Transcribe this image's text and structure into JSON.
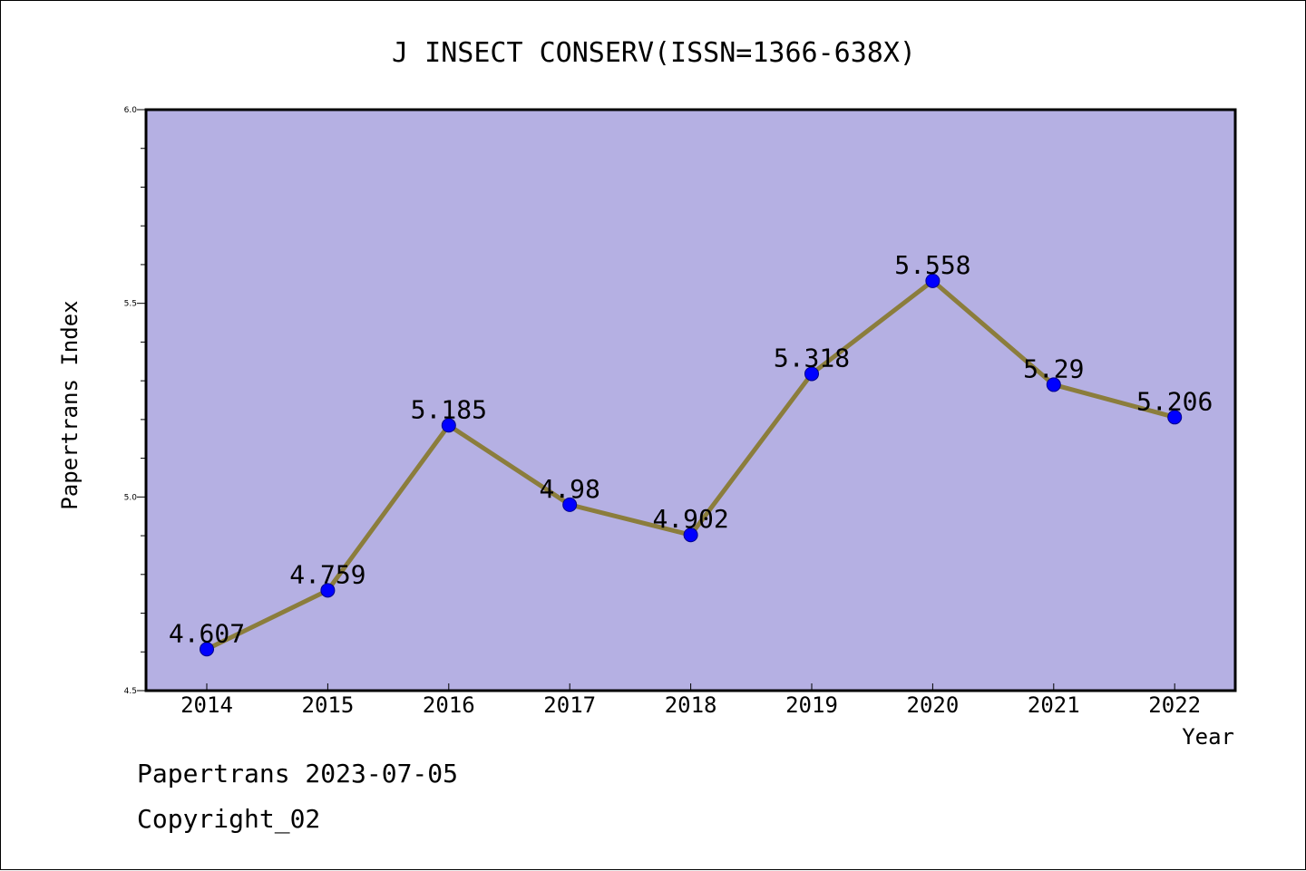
{
  "colors": {
    "plot_bg": "#b5b0e3",
    "line": "#8b7d3c",
    "marker": "#0000ff",
    "marker_edge": "#00008b",
    "axis": "#000000"
  },
  "chart_data": {
    "type": "line",
    "title": "J INSECT CONSERV(ISSN=1366-638X)",
    "xlabel": "Year",
    "ylabel": "Papertrans Index",
    "categories": [
      "2014",
      "2015",
      "2016",
      "2017",
      "2018",
      "2019",
      "2020",
      "2021",
      "2022"
    ],
    "series": [
      {
        "values": [
          4.607,
          4.759,
          5.185,
          4.98,
          4.902,
          5.318,
          5.558,
          5.29,
          5.206
        ],
        "labels": [
          "4.607",
          "4.759",
          "5.185",
          "4.98",
          "4.902",
          "5.318",
          "5.558",
          "5.29",
          "5.206"
        ]
      }
    ],
    "ylim": [
      4.5,
      6.0
    ],
    "yticks_major": [
      "4.5",
      "5.0",
      "5.5",
      "6.0"
    ],
    "ytick_minor_step": 0.1,
    "grid": false,
    "legend": "none"
  },
  "footer": {
    "line1": "Papertrans 2023-07-05",
    "line2": "Copyright_02"
  }
}
